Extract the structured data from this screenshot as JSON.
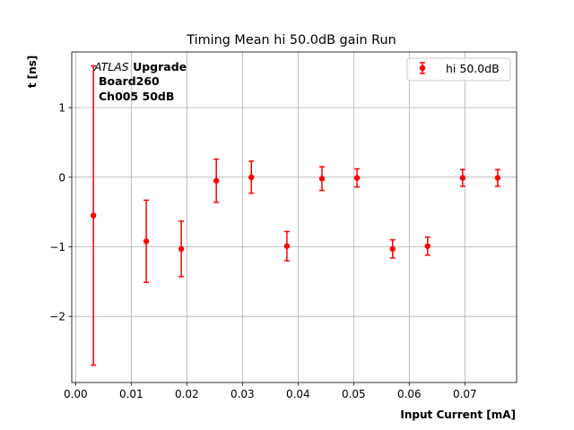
{
  "chart_data": {
    "type": "scatter",
    "title": "Timing Mean hi 50.0dB gain Run",
    "xlabel": "Input Current [mA]",
    "ylabel": "t [ns]",
    "xlim": [
      -0.0007,
      0.0793
    ],
    "ylim": [
      -2.95,
      1.8
    ],
    "x_ticks": [
      0.0,
      0.01,
      0.02,
      0.03,
      0.04,
      0.05,
      0.06,
      0.07
    ],
    "x_tick_labels": [
      "0.00",
      "0.01",
      "0.02",
      "0.03",
      "0.04",
      "0.05",
      "0.06",
      "0.07"
    ],
    "y_ticks": [
      -2,
      -1,
      0,
      1
    ],
    "y_tick_labels": [
      "−2",
      "−1",
      "0",
      "1"
    ],
    "grid": true,
    "legend_position": "top-right",
    "annotation": {
      "atlas": "ATLAS",
      "upgrade": " Upgrade",
      "line2": "Board260",
      "line3": "Ch005 50dB"
    },
    "series": [
      {
        "name": "hi 50.0dB",
        "color": "#ff0000",
        "points": [
          {
            "x": 0.0032,
            "y": -0.55,
            "err": 2.15
          },
          {
            "x": 0.0127,
            "y": -0.92,
            "err": 0.59
          },
          {
            "x": 0.019,
            "y": -1.03,
            "err": 0.4
          },
          {
            "x": 0.0253,
            "y": -0.05,
            "err": 0.31
          },
          {
            "x": 0.0316,
            "y": 0.0,
            "err": 0.23
          },
          {
            "x": 0.038,
            "y": -0.99,
            "err": 0.21
          },
          {
            "x": 0.0443,
            "y": -0.02,
            "err": 0.17
          },
          {
            "x": 0.0506,
            "y": -0.01,
            "err": 0.13
          },
          {
            "x": 0.057,
            "y": -1.03,
            "err": 0.13
          },
          {
            "x": 0.0633,
            "y": -0.99,
            "err": 0.13
          },
          {
            "x": 0.0696,
            "y": -0.01,
            "err": 0.12
          },
          {
            "x": 0.0759,
            "y": -0.01,
            "err": 0.12
          }
        ]
      }
    ]
  }
}
